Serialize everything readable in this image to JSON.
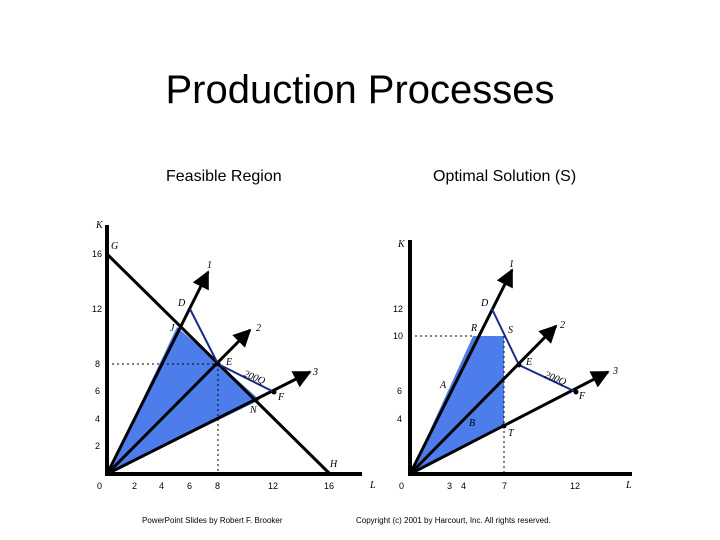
{
  "title": "Production Processes",
  "left_panel": {
    "subtitle": "Feasible Region",
    "y_axis_label": "K",
    "x_axis_label": "L",
    "y_ticks": [
      "16",
      "12",
      "8",
      "6",
      "4",
      "2"
    ],
    "x_ticks": [
      "0",
      "2",
      "4",
      "6",
      "8",
      "12",
      "16"
    ],
    "points": {
      "G": "G",
      "D": "D",
      "J": "J",
      "E": "E",
      "F": "F",
      "N": "N",
      "H": "H"
    },
    "rays": [
      "1",
      "2",
      "3"
    ],
    "isoquant_label": "200Q"
  },
  "right_panel": {
    "subtitle": "Optimal Solution (S)",
    "y_axis_label": "K",
    "x_axis_label": "L",
    "y_ticks": [
      "12",
      "10",
      "6",
      "4"
    ],
    "x_ticks": [
      "0",
      "3",
      "4",
      "7",
      "12"
    ],
    "points": {
      "D": "D",
      "R": "R",
      "S": "S",
      "E": "E",
      "A": "A",
      "B": "B",
      "T": "T",
      "F": "F"
    },
    "rays": [
      "1",
      "2",
      "3"
    ],
    "isoquant_label": "200Q"
  },
  "footer_left": "PowerPoint Slides by Robert F. Brooker",
  "footer_right": "Copyright (c) 2001 by Harcourt, Inc. All rights reserved.",
  "colors": {
    "fill": "#3a6fe8",
    "isoquant": "#1a2a8c",
    "axis": "#000000"
  }
}
